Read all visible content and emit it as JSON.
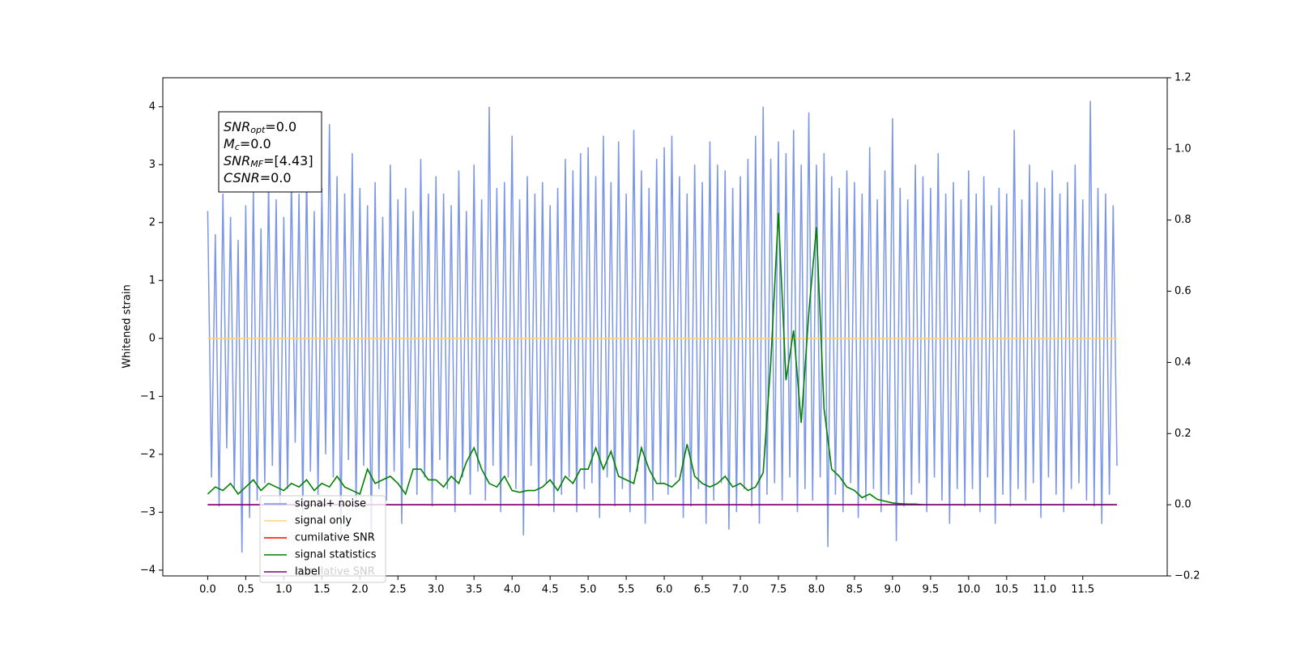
{
  "chart_data": {
    "type": "line",
    "ylabel": "Whitened strain",
    "xlim": [
      -0.59,
      12.61
    ],
    "xticks": [
      {
        "value": 0,
        "label": "0.0"
      },
      0.5,
      {
        "value": 1,
        "label": "1.0"
      },
      1.5,
      {
        "value": 2,
        "label": "2.0"
      },
      2.5,
      {
        "value": 3,
        "label": "3.0"
      },
      3.5,
      {
        "value": 4,
        "label": "4.0"
      },
      4.5,
      {
        "value": 5,
        "label": "5.0"
      },
      5.5,
      {
        "value": 6,
        "label": "6.0"
      },
      6.5,
      {
        "value": 7,
        "label": "7.0"
      },
      7.5,
      {
        "value": 8,
        "label": "8.0"
      },
      8.5,
      {
        "value": 9,
        "label": "9.0"
      },
      9.5,
      {
        "value": 10,
        "label": "10.0"
      },
      10.5,
      {
        "value": 11,
        "label": "11.0"
      },
      11.5
    ],
    "ylim": [
      -4.1,
      4.5
    ],
    "yticks": [
      {
        "value": -4,
        "label": "−4"
      },
      {
        "value": -3,
        "label": "−3"
      },
      {
        "value": -2,
        "label": "−2"
      },
      {
        "value": -1,
        "label": "−1"
      },
      0,
      1,
      2,
      3,
      4
    ],
    "y2lim": [
      -0.2,
      1.2
    ],
    "y2ticks": [
      {
        "value": -0.2,
        "label": "−0.2"
      },
      {
        "value": 0,
        "label": "0.0"
      },
      0.2,
      0.4,
      0.6,
      0.8,
      {
        "value": 1,
        "label": "1.0"
      },
      1.2
    ],
    "legend": "lower left",
    "background_text": "cumilative SNR",
    "annotations": [
      {
        "main": "SNR",
        "sub": "opt",
        "rest": "=0.0"
      },
      {
        "main": "M",
        "sub": "c",
        "rest": "=0.0"
      },
      {
        "main": "SNR",
        "sub": "MF",
        "rest": "=[4.43]"
      },
      {
        "main": "CSNR",
        "sub": "",
        "rest": "=0.0"
      }
    ],
    "series": [
      {
        "name": "signal+ noise",
        "color": "#7b96e6",
        "x": [
          0,
          0.05,
          0.1,
          0.15,
          0.2,
          0.25,
          0.3,
          0.35,
          0.4,
          0.45,
          0.5,
          0.55,
          0.6,
          0.65,
          0.7,
          0.75,
          0.8,
          0.85,
          0.9,
          0.95,
          1,
          1.05,
          1.1,
          1.15,
          1.2,
          1.25,
          1.3,
          1.35,
          1.4,
          1.45,
          1.5,
          1.55,
          1.6,
          1.65,
          1.7,
          1.75,
          1.8,
          1.85,
          1.9,
          1.95,
          2,
          2.05,
          2.1,
          2.15,
          2.2,
          2.25,
          2.3,
          2.35,
          2.4,
          2.45,
          2.5,
          2.55,
          2.6,
          2.65,
          2.7,
          2.75,
          2.8,
          2.85,
          2.9,
          2.95,
          3,
          3.05,
          3.1,
          3.15,
          3.2,
          3.25,
          3.3,
          3.35,
          3.4,
          3.45,
          3.5,
          3.55,
          3.6,
          3.65,
          3.7,
          3.75,
          3.8,
          3.85,
          3.9,
          3.95,
          4,
          4.05,
          4.1,
          4.15,
          4.2,
          4.25,
          4.3,
          4.35,
          4.4,
          4.45,
          4.5,
          4.55,
          4.6,
          4.65,
          4.7,
          4.75,
          4.8,
          4.85,
          4.9,
          4.95,
          5,
          5.05,
          5.1,
          5.15,
          5.2,
          5.25,
          5.3,
          5.35,
          5.4,
          5.45,
          5.5,
          5.55,
          5.6,
          5.65,
          5.7,
          5.75,
          5.8,
          5.85,
          5.9,
          5.95,
          6,
          6.05,
          6.1,
          6.15,
          6.2,
          6.25,
          6.3,
          6.35,
          6.4,
          6.45,
          6.5,
          6.55,
          6.6,
          6.65,
          6.7,
          6.75,
          6.8,
          6.85,
          6.9,
          6.95,
          7,
          7.05,
          7.1,
          7.15,
          7.2,
          7.25,
          7.3,
          7.35,
          7.4,
          7.45,
          7.5,
          7.55,
          7.6,
          7.65,
          7.7,
          7.75,
          7.8,
          7.85,
          7.9,
          7.95,
          8,
          8.05,
          8.1,
          8.15,
          8.2,
          8.25,
          8.3,
          8.35,
          8.4,
          8.45,
          8.5,
          8.55,
          8.6,
          8.65,
          8.7,
          8.75,
          8.8,
          8.85,
          8.9,
          8.95,
          9,
          9.05,
          9.1,
          9.15,
          9.2,
          9.25,
          9.3,
          9.35,
          9.4,
          9.45,
          9.5,
          9.55,
          9.6,
          9.65,
          9.7,
          9.75,
          9.8,
          9.85,
          9.9,
          9.95,
          10,
          10.05,
          10.1,
          10.15,
          10.2,
          10.25,
          10.3,
          10.35,
          10.4,
          10.45,
          10.5,
          10.55,
          10.6,
          10.65,
          10.7,
          10.75,
          10.8,
          10.85,
          10.9,
          10.95,
          11,
          11.05,
          11.1,
          11.15,
          11.2,
          11.25,
          11.3,
          11.35,
          11.4,
          11.45,
          11.5,
          11.55,
          11.6,
          11.65,
          11.7,
          11.75,
          11.8,
          11.85,
          11.9,
          11.95
        ],
        "values": [
          2.2,
          -2.4,
          1.8,
          -2.9,
          2.5,
          -1.9,
          2.1,
          -2.6,
          1.7,
          -3.7,
          2.3,
          -3.1,
          2.6,
          -2.8,
          1.9,
          -2.5,
          2.7,
          -2.2,
          2.4,
          -2.9,
          2.1,
          -2.6,
          2.8,
          -1.8,
          2.5,
          -3.0,
          2.9,
          -2.3,
          2.2,
          -2.7,
          2.6,
          -2.0,
          3.7,
          -2.4,
          2.8,
          -3.4,
          2.5,
          -2.1,
          3.2,
          -2.9,
          2.6,
          -2.2,
          2.3,
          -3.5,
          2.7,
          -2.6,
          2.1,
          -2.8,
          3.0,
          -2.3,
          2.4,
          -3.2,
          2.6,
          -1.9,
          2.2,
          -2.7,
          3.1,
          -2.4,
          2.5,
          -2.9,
          2.8,
          -2.1,
          2.5,
          -2.6,
          2.3,
          -3.0,
          2.9,
          -2.4,
          2.2,
          -2.7,
          3.0,
          -2.3,
          2.4,
          -2.8,
          4.0,
          -2.2,
          2.6,
          -3.0,
          2.7,
          -2.4,
          3.5,
          -2.6,
          2.4,
          -3.4,
          2.8,
          -2.2,
          2.5,
          -2.9,
          2.7,
          -2.5,
          2.3,
          -3.0,
          2.6,
          -2.7,
          3.1,
          -2.4,
          2.9,
          -3.0,
          3.2,
          -2.6,
          3.3,
          -2.5,
          2.8,
          -3.1,
          3.5,
          -2.4,
          2.7,
          -2.9,
          3.4,
          -2.6,
          2.5,
          -3.0,
          3.6,
          -2.3,
          2.9,
          -3.2,
          2.6,
          -2.8,
          3.1,
          -2.5,
          3.3,
          -2.7,
          3.5,
          -2.4,
          2.8,
          -3.1,
          2.5,
          -2.9,
          3.0,
          -2.6,
          2.7,
          -3.2,
          3.4,
          -2.8,
          3.0,
          -2.5,
          2.9,
          -3.3,
          2.6,
          -3.0,
          2.8,
          -2.6,
          3.1,
          -2.9,
          3.5,
          -3.2,
          4.0,
          -2.7,
          3.1,
          -2.5,
          3.4,
          -2.8,
          3.2,
          -2.4,
          3.6,
          -3.0,
          3.0,
          -2.6,
          3.9,
          -2.8,
          3.0,
          -2.4,
          3.2,
          -3.6,
          2.8,
          -2.7,
          2.6,
          -3.0,
          2.9,
          -2.5,
          2.7,
          -3.1,
          2.5,
          -2.8,
          3.3,
          -2.6,
          2.4,
          -3.0,
          2.9,
          -2.7,
          3.8,
          -3.5,
          2.6,
          -2.9,
          2.4,
          -2.7,
          3.0,
          -2.5,
          2.8,
          -3.0,
          2.6,
          -2.4,
          3.2,
          -2.8,
          2.5,
          -3.2,
          2.7,
          -2.6,
          2.4,
          -2.9,
          2.9,
          -2.6,
          2.5,
          -3.0,
          2.8,
          -2.4,
          2.3,
          -3.2,
          2.6,
          -2.7,
          2.5,
          -2.9,
          3.6,
          -2.6,
          2.4,
          -2.8,
          3.0,
          -2.5,
          2.7,
          -3.1,
          2.6,
          -2.4,
          2.9,
          -2.7,
          2.5,
          -3.0,
          2.7,
          -2.6,
          3.0,
          -2.5,
          2.4,
          -2.8,
          4.1,
          -2.9,
          2.6,
          -3.2,
          2.5,
          -2.7,
          2.3,
          -2.2
        ]
      },
      {
        "name": "signal only",
        "color": "#ffd27f",
        "x": [
          0,
          11.95
        ],
        "values": [
          0,
          0
        ]
      },
      {
        "name": "cumilative SNR",
        "color": "#ff0000",
        "axis": "y2",
        "x": [
          0,
          11.95
        ],
        "values": [
          0,
          0
        ]
      },
      {
        "name": "signal statistics",
        "color": "#008000",
        "axis": "y2",
        "x": [
          0,
          0.1,
          0.2,
          0.3,
          0.4,
          0.5,
          0.6,
          0.7,
          0.8,
          0.9,
          1,
          1.1,
          1.2,
          1.3,
          1.4,
          1.5,
          1.6,
          1.7,
          1.8,
          1.9,
          2,
          2.1,
          2.2,
          2.3,
          2.4,
          2.5,
          2.6,
          2.7,
          2.8,
          2.9,
          3,
          3.1,
          3.2,
          3.3,
          3.4,
          3.5,
          3.6,
          3.7,
          3.8,
          3.9,
          4,
          4.1,
          4.2,
          4.3,
          4.4,
          4.5,
          4.6,
          4.7,
          4.8,
          4.9,
          5,
          5.1,
          5.2,
          5.3,
          5.4,
          5.5,
          5.6,
          5.7,
          5.8,
          5.9,
          6,
          6.1,
          6.2,
          6.3,
          6.4,
          6.5,
          6.6,
          6.7,
          6.8,
          6.9,
          7,
          7.1,
          7.2,
          7.3,
          7.4,
          7.5,
          7.6,
          7.7,
          7.8,
          7.9,
          8,
          8.1,
          8.2,
          8.3,
          8.4,
          8.5,
          8.6,
          8.7,
          8.8,
          8.9,
          9,
          9.1,
          9.2,
          9.3,
          9.4,
          9.5,
          9.6,
          9.7,
          9.8,
          9.9,
          10,
          10.1,
          10.2,
          10.3,
          10.4,
          10.5,
          10.6,
          10.7,
          10.8,
          10.9,
          11,
          11.1,
          11.2,
          11.3,
          11.4,
          11.5,
          11.6,
          11.7,
          11.8,
          11.9
        ],
        "values": [
          0.03,
          0.05,
          0.04,
          0.06,
          0.03,
          0.05,
          0.07,
          0.04,
          0.06,
          0.05,
          0.04,
          0.06,
          0.05,
          0.07,
          0.04,
          0.06,
          0.05,
          0.08,
          0.05,
          0.04,
          0.03,
          0.1,
          0.06,
          0.07,
          0.08,
          0.06,
          0.03,
          0.1,
          0.1,
          0.07,
          0.07,
          0.05,
          0.08,
          0.06,
          0.12,
          0.16,
          0.1,
          0.06,
          0.05,
          0.08,
          0.04,
          0.035,
          0.04,
          0.04,
          0.05,
          0.07,
          0.04,
          0.08,
          0.06,
          0.1,
          0.1,
          0.16,
          0.1,
          0.15,
          0.08,
          0.07,
          0.06,
          0.16,
          0.1,
          0.06,
          0.06,
          0.05,
          0.07,
          0.17,
          0.08,
          0.06,
          0.05,
          0.06,
          0.08,
          0.05,
          0.06,
          0.04,
          0.05,
          0.09,
          0.4,
          0.82,
          0.35,
          0.49,
          0.23,
          0.54,
          0.78,
          0.27,
          0.1,
          0.08,
          0.05,
          0.04,
          0.02,
          0.03,
          0.015,
          0.01,
          0.005,
          0.003,
          0.002,
          0.002,
          0,
          0,
          0,
          0,
          0,
          0,
          0,
          0,
          0,
          0,
          0,
          0,
          0,
          0,
          0,
          0,
          0,
          0,
          0,
          0,
          0,
          0,
          0,
          0,
          0,
          0
        ]
      },
      {
        "name": "label",
        "color": "#800080",
        "axis": "y2",
        "x": [
          0,
          11.95
        ],
        "values": [
          0,
          0
        ]
      }
    ]
  }
}
